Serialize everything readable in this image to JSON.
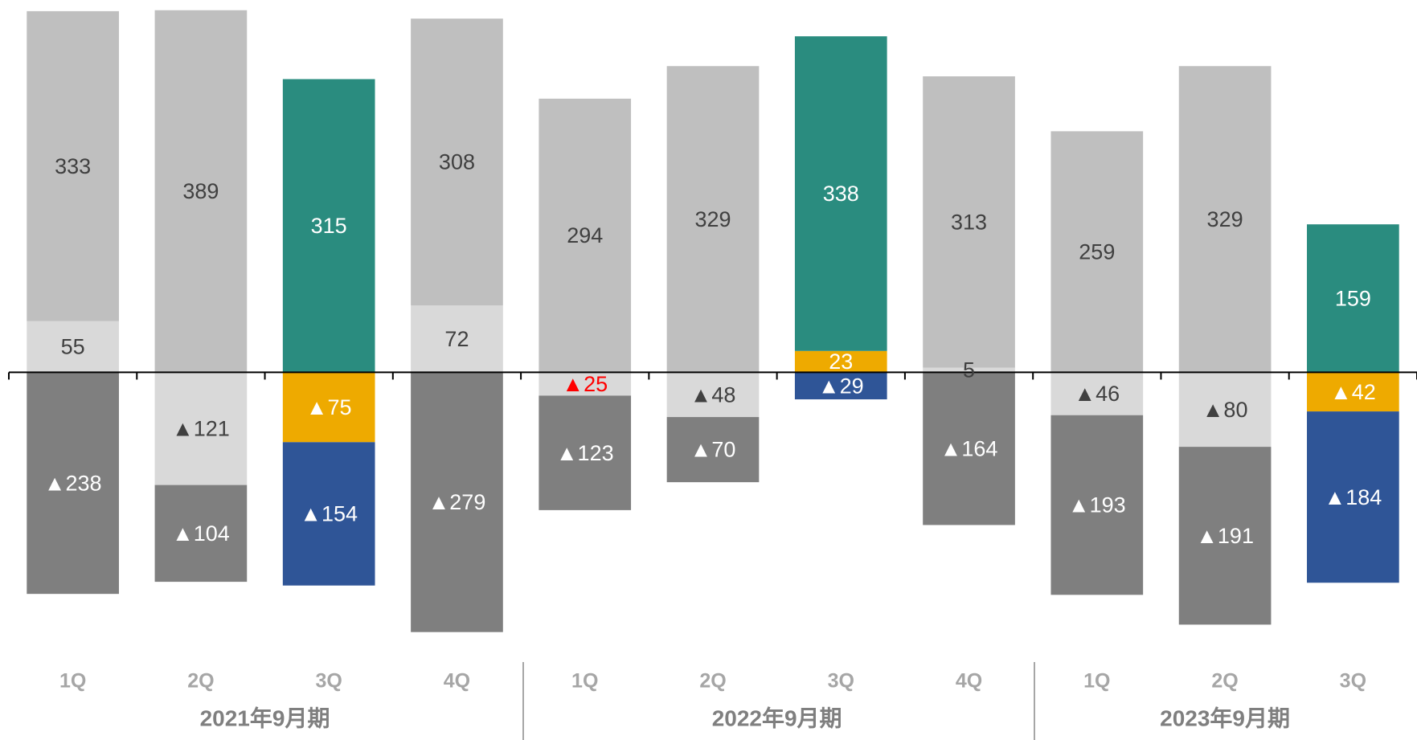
{
  "chart_data": {
    "type": "stacked_bar",
    "categories": [
      "1Q",
      "2Q",
      "3Q",
      "4Q",
      "1Q",
      "2Q",
      "3Q",
      "4Q",
      "1Q",
      "2Q",
      "3Q"
    ],
    "groups": [
      {
        "label": "2021年9月期",
        "count": 4
      },
      {
        "label": "2022年9月期",
        "count": 4
      },
      {
        "label": "2023年9月期",
        "count": 3
      }
    ],
    "ylim": [
      -300,
      400
    ],
    "series": [
      {
        "values": [
          55,
          null,
          null,
          72,
          null,
          null,
          23,
          5,
          null,
          null,
          null
        ],
        "colors": [
          "#d9d9d9",
          null,
          null,
          "#d9d9d9",
          null,
          null,
          "#eeaa00",
          "#d9d9d9",
          null,
          null,
          null
        ],
        "label_colors": [
          "#404040",
          null,
          null,
          "#404040",
          null,
          null,
          "#ffffff",
          "#404040",
          null,
          null,
          null
        ]
      },
      {
        "values": [
          333,
          389,
          315,
          308,
          294,
          329,
          338,
          313,
          259,
          329,
          159
        ],
        "colors": [
          "#bfbfbf",
          "#bfbfbf",
          "#2a8c7f",
          "#bfbfbf",
          "#bfbfbf",
          "#bfbfbf",
          "#2a8c7f",
          "#bfbfbf",
          "#bfbfbf",
          "#bfbfbf",
          "#2a8c7f"
        ],
        "label_colors": [
          "#404040",
          "#404040",
          "#ffffff",
          "#404040",
          "#404040",
          "#404040",
          "#ffffff",
          "#404040",
          "#404040",
          "#404040",
          "#ffffff"
        ]
      },
      {
        "values": [
          null,
          -121,
          -75,
          null,
          -25,
          -48,
          null,
          null,
          -46,
          -80,
          -42
        ],
        "value_labels": [
          null,
          "▲121",
          "▲75",
          null,
          "▲25",
          "▲48",
          null,
          null,
          "▲46",
          "▲80",
          "▲42"
        ],
        "colors": [
          null,
          "#d9d9d9",
          "#eeaa00",
          null,
          "#d9d9d9",
          "#d9d9d9",
          null,
          null,
          "#d9d9d9",
          "#d9d9d9",
          "#eeaa00"
        ],
        "label_colors": [
          null,
          "#404040",
          "#ffffff",
          null,
          "#ff0000",
          "#404040",
          null,
          null,
          "#404040",
          "#404040",
          "#ffffff"
        ]
      },
      {
        "values": [
          -238,
          -104,
          -154,
          -279,
          -123,
          -70,
          -29,
          -164,
          -193,
          -191,
          -184
        ],
        "value_labels": [
          "▲238",
          "▲104",
          "▲154",
          "▲279",
          "▲123",
          "▲70",
          "▲29",
          "▲164",
          "▲193",
          "▲191",
          "▲184"
        ],
        "colors": [
          "#7f7f7f",
          "#7f7f7f",
          "#2f5597",
          "#7f7f7f",
          "#7f7f7f",
          "#7f7f7f",
          "#2f5597",
          "#7f7f7f",
          "#7f7f7f",
          "#7f7f7f",
          "#2f5597"
        ],
        "label_colors": [
          "#ffffff",
          "#ffffff",
          "#ffffff",
          "#ffffff",
          "#ffffff",
          "#ffffff",
          "#ffffff",
          "#ffffff",
          "#ffffff",
          "#ffffff",
          "#ffffff"
        ]
      }
    ]
  }
}
